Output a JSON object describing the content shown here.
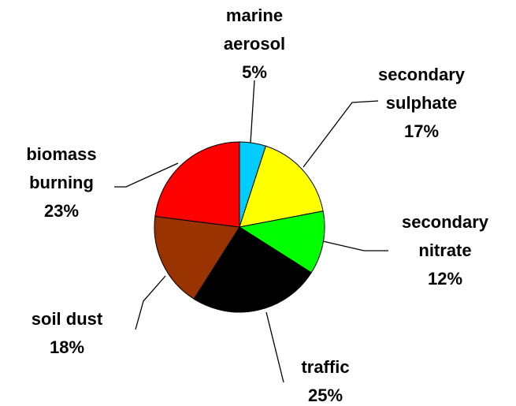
{
  "chart_data": {
    "type": "pie",
    "categories": [
      "marine aerosol",
      "secondary sulphate",
      "secondary nitrate",
      "traffic",
      "soil dust",
      "biomass burning"
    ],
    "values": [
      5,
      17,
      12,
      25,
      18,
      23
    ],
    "value_labels": [
      "5%",
      "17%",
      "12%",
      "25%",
      "18%",
      "23%"
    ],
    "colors": [
      "#00ccff",
      "#ffff00",
      "#00ff00",
      "#000000",
      "#993300",
      "#ff0000"
    ]
  }
}
